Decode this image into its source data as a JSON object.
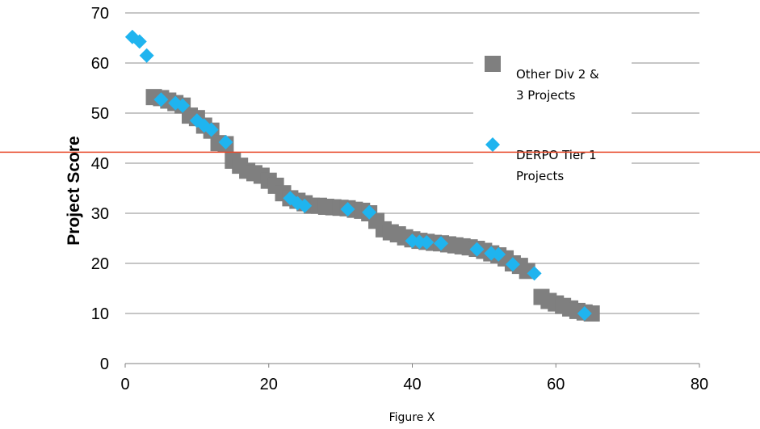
{
  "chart_data": {
    "type": "scatter",
    "ylabel": "Project Score",
    "xlabel": "",
    "caption": "Figure X",
    "xlim": [
      0,
      80
    ],
    "ylim": [
      0,
      70
    ],
    "x_ticks": [
      0,
      20,
      40,
      60,
      80
    ],
    "y_ticks": [
      0,
      10,
      20,
      30,
      40,
      50,
      60,
      70
    ],
    "grid": "horizontal",
    "threshold_line": {
      "y": 42.2,
      "color": "#e8492a"
    },
    "legend": {
      "placement": "right",
      "entries": [
        {
          "label_lines": [
            "Other Div 2 &",
            "3 Projects"
          ],
          "marker": "square",
          "color": "#7f7f7f"
        },
        {
          "label_lines": [
            "DERPO Tier 1",
            "Projects"
          ],
          "marker": "diamond",
          "color": "#1fb4ef"
        }
      ]
    },
    "series": [
      {
        "name": "Other Div 2 & 3 Projects",
        "marker": "square",
        "color": "#7f7f7f",
        "points": [
          [
            4,
            53.2
          ],
          [
            5,
            53
          ],
          [
            6,
            52.5
          ],
          [
            7,
            52
          ],
          [
            8,
            51.5
          ],
          [
            9,
            49.5
          ],
          [
            10,
            49
          ],
          [
            11,
            47.5
          ],
          [
            12,
            46.5
          ],
          [
            13,
            44
          ],
          [
            14,
            43.8
          ],
          [
            15,
            40.5
          ],
          [
            16,
            39.5
          ],
          [
            17,
            38.5
          ],
          [
            18,
            38
          ],
          [
            19,
            37.5
          ],
          [
            20,
            36.5
          ],
          [
            21,
            35.5
          ],
          [
            22,
            34
          ],
          [
            23,
            33
          ],
          [
            24,
            32.5
          ],
          [
            25,
            32
          ],
          [
            26,
            31.5
          ],
          [
            27,
            31.5
          ],
          [
            28,
            31.3
          ],
          [
            29,
            31.2
          ],
          [
            30,
            31.1
          ],
          [
            31,
            31
          ],
          [
            32,
            30.7
          ],
          [
            33,
            30.5
          ],
          [
            34,
            30
          ],
          [
            35,
            28.5
          ],
          [
            36,
            26.8
          ],
          [
            37,
            26.2
          ],
          [
            38,
            25.8
          ],
          [
            39,
            25.2
          ],
          [
            40,
            24.8
          ],
          [
            41,
            24.5
          ],
          [
            42,
            24.3
          ],
          [
            43,
            24.1
          ],
          [
            44,
            24
          ],
          [
            45,
            23.8
          ],
          [
            46,
            23.6
          ],
          [
            47,
            23.4
          ],
          [
            48,
            23.2
          ],
          [
            49,
            22.9
          ],
          [
            50,
            22.5
          ],
          [
            51,
            22
          ],
          [
            52,
            21.6
          ],
          [
            53,
            21
          ],
          [
            54,
            20
          ],
          [
            55,
            19.5
          ],
          [
            56,
            18.5
          ],
          [
            58,
            13.3
          ],
          [
            59,
            12.5
          ],
          [
            60,
            12
          ],
          [
            61,
            11.5
          ],
          [
            62,
            11
          ],
          [
            63,
            10.5
          ],
          [
            64,
            10.2
          ],
          [
            65,
            10
          ]
        ]
      },
      {
        "name": "DERPO Tier 1 Projects",
        "marker": "diamond",
        "color": "#1fb4ef",
        "points": [
          [
            1,
            65.2
          ],
          [
            2,
            64.3
          ],
          [
            3,
            61.5
          ],
          [
            5,
            52.7
          ],
          [
            7,
            52
          ],
          [
            8,
            51.5
          ],
          [
            10,
            48.5
          ],
          [
            11,
            47.5
          ],
          [
            12,
            46.7
          ],
          [
            14,
            44.2
          ],
          [
            23,
            33
          ],
          [
            24,
            32
          ],
          [
            25,
            31.5
          ],
          [
            31,
            30.8
          ],
          [
            34,
            30.2
          ],
          [
            40,
            24.5
          ],
          [
            41,
            24.3
          ],
          [
            42,
            24.2
          ],
          [
            44,
            24
          ],
          [
            49,
            22.8
          ],
          [
            51,
            22
          ],
          [
            52,
            21.8
          ],
          [
            54,
            19.8
          ],
          [
            57,
            18
          ],
          [
            64,
            10
          ]
        ]
      }
    ]
  }
}
